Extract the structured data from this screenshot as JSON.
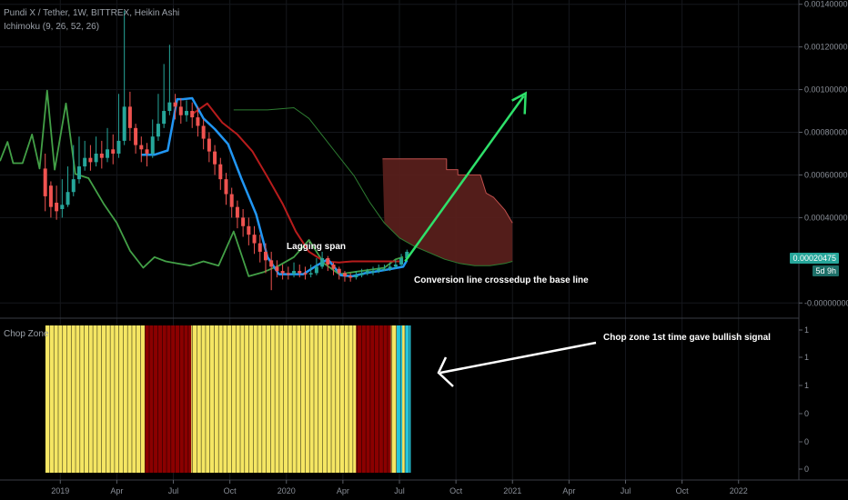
{
  "header": {
    "symbol": "Pundi X / Tether, 1W, BITTREX, Heikin Ashi",
    "indicator": "Ichimoku (9, 26, 52, 26)",
    "sub_pane_title": "Chop Zone"
  },
  "price_tags": {
    "last_price": "0.00020475",
    "countdown": "5d 9h"
  },
  "annotations": {
    "lagging_span": "Lagging span",
    "crossup": "Conversion line crossedup the base line",
    "chop_signal": "Chop zone 1st time gave bullish signal"
  },
  "colors": {
    "background": "#000000",
    "bull_candle": "#26a69a",
    "bear_candle": "#ef5350",
    "conversion_line": "#2196f3",
    "base_line": "#b71c1c",
    "lagging_span": "#43a047",
    "leading_span_b": "#2e7d32",
    "cloud_fill": "#5a1f1c",
    "chop_yellow": "#f5e663",
    "chop_red": "#8b0000",
    "chop_turquoise": "#26c6da",
    "arrow_green": "#2ee06a",
    "arrow_white": "#ffffff",
    "last_price_tag": "#26a69a"
  },
  "chart_data": {
    "type": "line",
    "price_axis": {
      "ticks": [
        "0.00140000",
        "0.00120000",
        "0.00100000",
        "0.00080000",
        "0.00060000",
        "0.00040000",
        "0.00020475",
        "-0.00000000"
      ],
      "tick_values": [
        0.0014,
        0.0012,
        0.001,
        0.0008,
        0.0006,
        0.0004,
        0.00020475,
        0
      ],
      "range": [
        -5e-05,
        0.00142
      ]
    },
    "chop_axis": {
      "ticks": [
        "1",
        "1",
        "1",
        "0",
        "0",
        "0"
      ],
      "range": [
        0,
        1
      ]
    },
    "time_axis": {
      "ticks": [
        "2019",
        "Apr",
        "Jul",
        "Oct",
        "2020",
        "Apr",
        "Jul",
        "Oct",
        "2021",
        "Apr",
        "Jul",
        "Oct",
        "2022"
      ],
      "tick_months": [
        0,
        3,
        6,
        9,
        12,
        15,
        18,
        21,
        24,
        27,
        30,
        33,
        36
      ],
      "range_months": [
        -3.2,
        39.2
      ]
    },
    "series": [
      {
        "name": "Conversion line",
        "x": [
          4.3,
          5.0,
          5.7,
          6.2,
          6.5,
          7.0,
          7.6,
          8.2,
          8.9,
          9.6,
          10.4,
          11.0,
          11.6,
          12.2,
          12.9,
          13.6,
          14.2,
          14.9,
          15.5,
          16.2,
          16.9,
          17.6,
          18.2,
          18.4
        ],
        "y": [
          0.000695,
          0.000695,
          0.000715,
          0.000955,
          0.000955,
          0.00096,
          0.000865,
          0.000815,
          0.000745,
          0.000585,
          0.000415,
          0.000215,
          0.000135,
          0.000135,
          0.000135,
          0.000175,
          0.000205,
          0.00013,
          0.000125,
          0.00014,
          0.00015,
          0.00016,
          0.00017,
          0.0002
        ]
      },
      {
        "name": "Base line",
        "x": [
          7.0,
          7.8,
          8.6,
          9.4,
          10.2,
          11.0,
          11.8,
          12.5,
          13.2,
          14.0,
          14.8,
          15.5,
          16.2,
          17.0,
          17.8,
          18.2
        ],
        "y": [
          0.000885,
          0.000935,
          0.000845,
          0.00079,
          0.00071,
          0.00059,
          0.000465,
          0.000335,
          0.00024,
          0.000195,
          0.00019,
          0.000195,
          0.000195,
          0.000195,
          0.000195,
          0.000195
        ]
      },
      {
        "name": "Lagging span",
        "x": [
          -3.2,
          -2.8,
          -2.5,
          -2.0,
          -1.5,
          -1.1,
          -0.7,
          -0.3,
          0.3,
          0.8,
          1.5,
          2.3,
          3.0,
          3.7,
          4.4,
          5.0,
          5.6,
          6.2,
          6.9,
          7.6,
          8.4,
          9.2,
          10.0,
          10.8,
          11.6,
          12.4,
          13.2,
          14.0,
          14.8,
          15.6,
          16.4,
          17.2,
          17.8,
          18.2
        ],
        "y": [
          0.000665,
          0.000755,
          0.000655,
          0.000655,
          0.00079,
          0.00063,
          0.000995,
          0.000625,
          0.000935,
          0.000605,
          0.000585,
          0.000465,
          0.000375,
          0.000245,
          0.000165,
          0.000215,
          0.000195,
          0.000185,
          0.000175,
          0.000195,
          0.000175,
          0.000335,
          0.000125,
          0.000145,
          0.000175,
          0.000215,
          0.000295,
          0.000185,
          0.000135,
          0.000145,
          0.000155,
          0.000165,
          0.000205,
          0.000215
        ]
      },
      {
        "name": "Leading span B",
        "x": [
          9.2,
          11.0,
          12.4,
          13.2,
          14.0,
          14.8,
          15.6,
          16.4,
          17.2,
          18.0,
          18.8,
          19.6,
          20.4,
          21.2,
          22.0,
          22.8,
          23.6,
          24.0
        ],
        "y": [
          0.000905,
          0.000905,
          0.000915,
          0.000865,
          0.000775,
          0.000685,
          0.000595,
          0.000475,
          0.000375,
          0.000305,
          0.000265,
          0.000235,
          0.000205,
          0.000185,
          0.000175,
          0.000175,
          0.000185,
          0.000195
        ]
      },
      {
        "name": "Leading span A",
        "x": [
          17.1,
          20.5,
          20.5,
          21.1,
          21.1,
          22.3,
          22.6,
          23.0,
          23.6,
          24.0
        ],
        "y": [
          0.000675,
          0.000675,
          0.000625,
          0.000625,
          0.0006,
          0.0006,
          0.000515,
          0.000495,
          0.000435,
          0.000375
        ]
      }
    ],
    "candles": [
      {
        "t": -0.8,
        "o": 0.00063,
        "c": 0.0005,
        "h": 0.0007,
        "l": 0.00043
      },
      {
        "t": -0.5,
        "o": 0.00055,
        "c": 0.00045,
        "h": 0.00057,
        "l": 0.0004
      },
      {
        "t": -0.2,
        "o": 0.00047,
        "c": 0.00043,
        "h": 0.00055,
        "l": 0.00039
      },
      {
        "t": 0.1,
        "o": 0.00044,
        "c": 0.00046,
        "h": 0.00058,
        "l": 0.0004
      },
      {
        "t": 0.4,
        "o": 0.00046,
        "c": 0.00052,
        "h": 0.00064,
        "l": 0.00045
      },
      {
        "t": 0.7,
        "o": 0.00052,
        "c": 0.00058,
        "h": 0.00074,
        "l": 0.0005
      },
      {
        "t": 1.0,
        "o": 0.00058,
        "c": 0.00064,
        "h": 0.00078,
        "l": 0.00056
      },
      {
        "t": 1.3,
        "o": 0.00064,
        "c": 0.00068,
        "h": 0.00076,
        "l": 0.00062
      },
      {
        "t": 1.6,
        "o": 0.00068,
        "c": 0.00066,
        "h": 0.00074,
        "l": 0.00062
      },
      {
        "t": 1.9,
        "o": 0.00066,
        "c": 0.0007,
        "h": 0.00078,
        "l": 0.00064
      },
      {
        "t": 2.2,
        "o": 0.0007,
        "c": 0.00068,
        "h": 0.00076,
        "l": 0.00063
      },
      {
        "t": 2.5,
        "o": 0.00068,
        "c": 0.00072,
        "h": 0.00082,
        "l": 0.00066
      },
      {
        "t": 2.8,
        "o": 0.00072,
        "c": 0.0007,
        "h": 0.00079,
        "l": 0.00065
      },
      {
        "t": 3.1,
        "o": 0.0007,
        "c": 0.00076,
        "h": 0.00098,
        "l": 0.00068
      },
      {
        "t": 3.4,
        "o": 0.00076,
        "c": 0.00092,
        "h": 0.00137,
        "l": 0.00074
      },
      {
        "t": 3.7,
        "o": 0.00092,
        "c": 0.00082,
        "h": 0.00099,
        "l": 0.00076
      },
      {
        "t": 4.0,
        "o": 0.00082,
        "c": 0.00074,
        "h": 0.00084,
        "l": 0.0007
      },
      {
        "t": 4.3,
        "o": 0.00074,
        "c": 0.00072,
        "h": 0.00078,
        "l": 0.00066
      },
      {
        "t": 4.6,
        "o": 0.00072,
        "c": 0.0007,
        "h": 0.00075,
        "l": 0.00064
      },
      {
        "t": 4.9,
        "o": 0.0007,
        "c": 0.00078,
        "h": 0.00086,
        "l": 0.00068
      },
      {
        "t": 5.2,
        "o": 0.00078,
        "c": 0.00084,
        "h": 0.00098,
        "l": 0.00076
      },
      {
        "t": 5.5,
        "o": 0.00084,
        "c": 0.0009,
        "h": 0.00112,
        "l": 0.00082
      },
      {
        "t": 5.8,
        "o": 0.0009,
        "c": 0.00094,
        "h": 0.00121,
        "l": 0.00088
      },
      {
        "t": 6.1,
        "o": 0.00094,
        "c": 0.00092,
        "h": 0.00098,
        "l": 0.00086
      },
      {
        "t": 6.4,
        "o": 0.00092,
        "c": 0.00088,
        "h": 0.00096,
        "l": 0.00084
      },
      {
        "t": 6.7,
        "o": 0.00088,
        "c": 0.0009,
        "h": 0.00095,
        "l": 0.00085
      },
      {
        "t": 7.0,
        "o": 0.0009,
        "c": 0.00087,
        "h": 0.00094,
        "l": 0.00082
      },
      {
        "t": 7.3,
        "o": 0.00087,
        "c": 0.00083,
        "h": 0.00092,
        "l": 0.00078
      },
      {
        "t": 7.6,
        "o": 0.00083,
        "c": 0.00077,
        "h": 0.00086,
        "l": 0.00072
      },
      {
        "t": 7.9,
        "o": 0.00077,
        "c": 0.00071,
        "h": 0.0008,
        "l": 0.00066
      },
      {
        "t": 8.2,
        "o": 0.00071,
        "c": 0.00065,
        "h": 0.00074,
        "l": 0.0006
      },
      {
        "t": 8.5,
        "o": 0.00065,
        "c": 0.00058,
        "h": 0.00068,
        "l": 0.00053
      },
      {
        "t": 8.8,
        "o": 0.00058,
        "c": 0.00051,
        "h": 0.00061,
        "l": 0.00046
      },
      {
        "t": 9.1,
        "o": 0.00051,
        "c": 0.00045,
        "h": 0.00054,
        "l": 0.0004
      },
      {
        "t": 9.4,
        "o": 0.00045,
        "c": 0.0004,
        "h": 0.00048,
        "l": 0.00035
      },
      {
        "t": 9.7,
        "o": 0.0004,
        "c": 0.00036,
        "h": 0.00044,
        "l": 0.00031
      },
      {
        "t": 10.0,
        "o": 0.00036,
        "c": 0.00032,
        "h": 0.0004,
        "l": 0.00027
      },
      {
        "t": 10.3,
        "o": 0.00032,
        "c": 0.00028,
        "h": 0.00036,
        "l": 0.00023
      },
      {
        "t": 10.6,
        "o": 0.00028,
        "c": 0.00024,
        "h": 0.00032,
        "l": 0.00019
      },
      {
        "t": 10.9,
        "o": 0.00024,
        "c": 0.0002,
        "h": 0.00028,
        "l": 0.00014
      },
      {
        "t": 11.2,
        "o": 0.0002,
        "c": 0.00017,
        "h": 0.00024,
        "l": 6e-05
      },
      {
        "t": 11.5,
        "o": 0.00017,
        "c": 0.00015,
        "h": 0.0002,
        "l": 0.00012
      },
      {
        "t": 11.8,
        "o": 0.00015,
        "c": 0.00014,
        "h": 0.00018,
        "l": 0.00011
      },
      {
        "t": 12.1,
        "o": 0.00014,
        "c": 0.000135,
        "h": 0.00017,
        "l": 0.00011
      },
      {
        "t": 12.4,
        "o": 0.000135,
        "c": 0.00015,
        "h": 0.00019,
        "l": 0.00012
      },
      {
        "t": 12.7,
        "o": 0.00015,
        "c": 0.00014,
        "h": 0.00018,
        "l": 0.00012
      },
      {
        "t": 13.0,
        "o": 0.00014,
        "c": 0.000135,
        "h": 0.00017,
        "l": 0.00011
      },
      {
        "t": 13.3,
        "o": 0.000135,
        "c": 0.00014,
        "h": 0.00018,
        "l": 0.00012
      },
      {
        "t": 13.6,
        "o": 0.00014,
        "c": 0.00017,
        "h": 0.00021,
        "l": 0.00013
      },
      {
        "t": 13.9,
        "o": 0.00017,
        "c": 0.00021,
        "h": 0.00024,
        "l": 0.00016
      },
      {
        "t": 14.2,
        "o": 0.00021,
        "c": 0.00018,
        "h": 0.00022,
        "l": 0.00015
      },
      {
        "t": 14.5,
        "o": 0.00018,
        "c": 0.00016,
        "h": 0.00019,
        "l": 0.00013
      },
      {
        "t": 14.8,
        "o": 0.00016,
        "c": 0.00014,
        "h": 0.00017,
        "l": 0.00011
      },
      {
        "t": 15.1,
        "o": 0.00014,
        "c": 0.000125,
        "h": 0.00015,
        "l": 0.0001
      },
      {
        "t": 15.4,
        "o": 0.000125,
        "c": 0.00012,
        "h": 0.00014,
        "l": 0.0001
      },
      {
        "t": 15.7,
        "o": 0.00012,
        "c": 0.00013,
        "h": 0.00015,
        "l": 0.00011
      },
      {
        "t": 16.0,
        "o": 0.00013,
        "c": 0.00014,
        "h": 0.00016,
        "l": 0.00012
      },
      {
        "t": 16.3,
        "o": 0.00014,
        "c": 0.00015,
        "h": 0.00016,
        "l": 0.00013
      },
      {
        "t": 16.6,
        "o": 0.00015,
        "c": 0.00015,
        "h": 0.00017,
        "l": 0.00013
      },
      {
        "t": 16.9,
        "o": 0.00015,
        "c": 0.00016,
        "h": 0.00018,
        "l": 0.00014
      },
      {
        "t": 17.2,
        "o": 0.00016,
        "c": 0.00016,
        "h": 0.00018,
        "l": 0.00015
      },
      {
        "t": 17.5,
        "o": 0.00016,
        "c": 0.00017,
        "h": 0.00019,
        "l": 0.00015
      },
      {
        "t": 17.8,
        "o": 0.00017,
        "c": 0.00018,
        "h": 0.0002,
        "l": 0.00016
      },
      {
        "t": 18.1,
        "o": 0.00018,
        "c": 0.00021,
        "h": 0.00023,
        "l": 0.00017
      },
      {
        "t": 18.4,
        "o": 0.00021,
        "c": 0.00024,
        "h": 0.00025,
        "l": 0.0002
      }
    ],
    "chop_zone": {
      "segments": [
        {
          "from": -0.8,
          "to": 4.5,
          "color": "yellow"
        },
        {
          "from": 4.5,
          "to": 6.95,
          "color": "red"
        },
        {
          "from": 6.95,
          "to": 15.7,
          "color": "yellow"
        },
        {
          "from": 15.7,
          "to": 17.55,
          "color": "red"
        },
        {
          "from": 17.55,
          "to": 17.85,
          "color": "yellow"
        },
        {
          "from": 17.85,
          "to": 18.15,
          "color": "turquoise"
        },
        {
          "from": 18.15,
          "to": 18.3,
          "color": "yellow"
        },
        {
          "from": 18.3,
          "to": 18.6,
          "color": "turquoise"
        }
      ]
    }
  }
}
